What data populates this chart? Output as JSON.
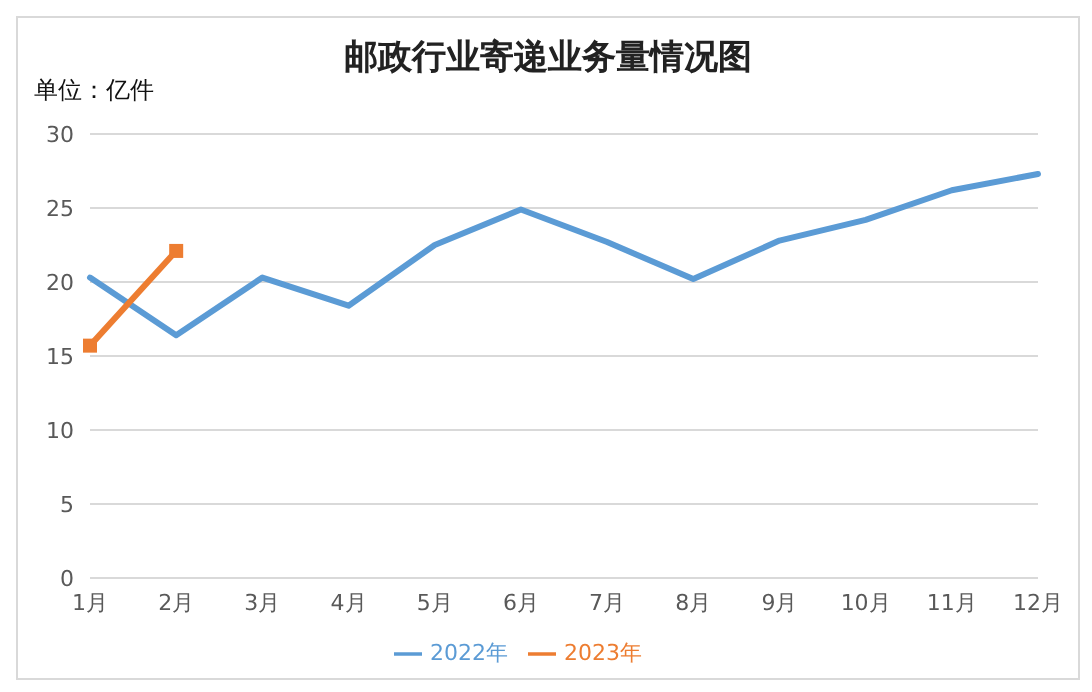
{
  "chart_data": {
    "type": "line",
    "title": "邮政行业寄递业务量情况图",
    "ylabel": "单位：亿件",
    "categories": [
      "1月",
      "2月",
      "3月",
      "4月",
      "5月",
      "6月",
      "7月",
      "8月",
      "9月",
      "10月",
      "11月",
      "12月"
    ],
    "series": [
      {
        "name": "2022年",
        "color": "#5b9bd5",
        "marker": "none",
        "values": [
          20.3,
          16.4,
          20.3,
          18.4,
          22.5,
          24.9,
          22.7,
          20.2,
          22.8,
          24.2,
          26.2,
          27.3
        ]
      },
      {
        "name": "2023年",
        "color": "#ed7d31",
        "marker": "square",
        "values": [
          15.7,
          22.1,
          null,
          null,
          null,
          null,
          null,
          null,
          null,
          null,
          null,
          null
        ]
      }
    ],
    "ylim": [
      0,
      30
    ],
    "yticks": [
      0,
      5,
      10,
      15,
      20,
      25,
      30
    ],
    "grid": "y",
    "legend": "bottom"
  }
}
